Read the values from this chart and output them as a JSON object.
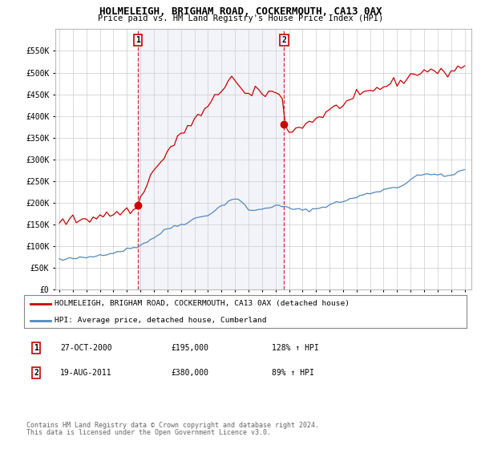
{
  "title": "HOLMELEIGH, BRIGHAM ROAD, COCKERMOUTH, CA13 0AX",
  "subtitle": "Price paid vs. HM Land Registry's House Price Index (HPI)",
  "ylim": [
    0,
    600000
  ],
  "yticks": [
    0,
    50000,
    100000,
    150000,
    200000,
    250000,
    300000,
    350000,
    400000,
    450000,
    500000,
    550000
  ],
  "ytick_labels": [
    "£0",
    "£50K",
    "£100K",
    "£150K",
    "£200K",
    "£250K",
    "£300K",
    "£350K",
    "£400K",
    "£450K",
    "£500K",
    "£550K"
  ],
  "hpi_color": "#5588bb",
  "sale_color": "#cc0000",
  "vline_color": "#cc0000",
  "shade_color": "#ddeeff",
  "background_color": "#ffffff",
  "grid_color": "#cccccc",
  "xlim_left": 1994.7,
  "xlim_right": 2025.5,
  "sale1_x": 2000.82,
  "sale1_y": 195000,
  "sale2_x": 2011.63,
  "sale2_y": 380000,
  "legend_label1": "HOLMELEIGH, BRIGHAM ROAD, COCKERMOUTH, CA13 0AX (detached house)",
  "legend_label2": "HPI: Average price, detached house, Cumberland",
  "footnote1": "Contains HM Land Registry data © Crown copyright and database right 2024.",
  "footnote2": "This data is licensed under the Open Government Licence v3.0.",
  "table_row1": [
    "1",
    "27-OCT-2000",
    "£195,000",
    "128% ↑ HPI"
  ],
  "table_row2": [
    "2",
    "19-AUG-2011",
    "£380,000",
    "89% ↑ HPI"
  ],
  "hpi_points": [
    [
      1995.0,
      70000
    ],
    [
      1995.25,
      68000
    ],
    [
      1995.5,
      69000
    ],
    [
      1995.75,
      71000
    ],
    [
      1996.0,
      72000
    ],
    [
      1996.25,
      71500
    ],
    [
      1996.5,
      72500
    ],
    [
      1996.75,
      73000
    ],
    [
      1997.0,
      74000
    ],
    [
      1997.25,
      75000
    ],
    [
      1997.5,
      76000
    ],
    [
      1997.75,
      78000
    ],
    [
      1998.0,
      80000
    ],
    [
      1998.25,
      82000
    ],
    [
      1998.5,
      83000
    ],
    [
      1998.75,
      84000
    ],
    [
      1999.0,
      85000
    ],
    [
      1999.25,
      87000
    ],
    [
      1999.5,
      89000
    ],
    [
      1999.75,
      91000
    ],
    [
      2000.0,
      93000
    ],
    [
      2000.25,
      95000
    ],
    [
      2000.5,
      97000
    ],
    [
      2000.75,
      99000
    ],
    [
      2001.0,
      103000
    ],
    [
      2001.25,
      107000
    ],
    [
      2001.5,
      111000
    ],
    [
      2001.75,
      115000
    ],
    [
      2002.0,
      120000
    ],
    [
      2002.25,
      125000
    ],
    [
      2002.5,
      130000
    ],
    [
      2002.75,
      135000
    ],
    [
      2003.0,
      140000
    ],
    [
      2003.25,
      143000
    ],
    [
      2003.5,
      146000
    ],
    [
      2003.75,
      148000
    ],
    [
      2004.0,
      150000
    ],
    [
      2004.25,
      153000
    ],
    [
      2004.5,
      156000
    ],
    [
      2004.75,
      159000
    ],
    [
      2005.0,
      163000
    ],
    [
      2005.25,
      166000
    ],
    [
      2005.5,
      168000
    ],
    [
      2005.75,
      170000
    ],
    [
      2006.0,
      173000
    ],
    [
      2006.25,
      177000
    ],
    [
      2006.5,
      182000
    ],
    [
      2006.75,
      187000
    ],
    [
      2007.0,
      193000
    ],
    [
      2007.25,
      198000
    ],
    [
      2007.5,
      203000
    ],
    [
      2007.75,
      208000
    ],
    [
      2008.0,
      210000
    ],
    [
      2008.25,
      207000
    ],
    [
      2008.5,
      200000
    ],
    [
      2008.75,
      193000
    ],
    [
      2009.0,
      185000
    ],
    [
      2009.25,
      183000
    ],
    [
      2009.5,
      182000
    ],
    [
      2009.75,
      183000
    ],
    [
      2010.0,
      186000
    ],
    [
      2010.25,
      188000
    ],
    [
      2010.5,
      190000
    ],
    [
      2010.75,
      192000
    ],
    [
      2011.0,
      193000
    ],
    [
      2011.25,
      192000
    ],
    [
      2011.5,
      191000
    ],
    [
      2011.75,
      190000
    ],
    [
      2012.0,
      188000
    ],
    [
      2012.25,
      186000
    ],
    [
      2012.5,
      185000
    ],
    [
      2012.75,
      184000
    ],
    [
      2013.0,
      183000
    ],
    [
      2013.25,
      183000
    ],
    [
      2013.5,
      184000
    ],
    [
      2013.75,
      185000
    ],
    [
      2014.0,
      186000
    ],
    [
      2014.25,
      188000
    ],
    [
      2014.5,
      190000
    ],
    [
      2014.75,
      193000
    ],
    [
      2015.0,
      196000
    ],
    [
      2015.25,
      198000
    ],
    [
      2015.5,
      200000
    ],
    [
      2015.75,
      202000
    ],
    [
      2016.0,
      204000
    ],
    [
      2016.25,
      206000
    ],
    [
      2016.5,
      208000
    ],
    [
      2016.75,
      210000
    ],
    [
      2017.0,
      213000
    ],
    [
      2017.25,
      216000
    ],
    [
      2017.5,
      218000
    ],
    [
      2017.75,
      220000
    ],
    [
      2018.0,
      222000
    ],
    [
      2018.25,
      224000
    ],
    [
      2018.5,
      226000
    ],
    [
      2018.75,
      228000
    ],
    [
      2019.0,
      230000
    ],
    [
      2019.25,
      232000
    ],
    [
      2019.5,
      234000
    ],
    [
      2019.75,
      236000
    ],
    [
      2020.0,
      237000
    ],
    [
      2020.25,
      238000
    ],
    [
      2020.5,
      242000
    ],
    [
      2020.75,
      248000
    ],
    [
      2021.0,
      254000
    ],
    [
      2021.25,
      258000
    ],
    [
      2021.5,
      261000
    ],
    [
      2021.75,
      263000
    ],
    [
      2022.0,
      265000
    ],
    [
      2022.25,
      267000
    ],
    [
      2022.5,
      268000
    ],
    [
      2022.75,
      266000
    ],
    [
      2023.0,
      264000
    ],
    [
      2023.25,
      262000
    ],
    [
      2023.5,
      261000
    ],
    [
      2023.75,
      262000
    ],
    [
      2024.0,
      264000
    ],
    [
      2024.25,
      267000
    ],
    [
      2024.5,
      270000
    ],
    [
      2024.75,
      273000
    ],
    [
      2025.0,
      275000
    ]
  ],
  "red_points": [
    [
      1995.0,
      158000
    ],
    [
      1995.25,
      156000
    ],
    [
      1995.5,
      157000
    ],
    [
      1995.75,
      160000
    ],
    [
      1996.0,
      161000
    ],
    [
      1996.25,
      159000
    ],
    [
      1996.5,
      162000
    ],
    [
      1996.75,
      163000
    ],
    [
      1997.0,
      165000
    ],
    [
      1997.25,
      163000
    ],
    [
      1997.5,
      167000
    ],
    [
      1997.75,
      168000
    ],
    [
      1998.0,
      170000
    ],
    [
      1998.25,
      172000
    ],
    [
      1998.5,
      171000
    ],
    [
      1998.75,
      173000
    ],
    [
      1999.0,
      174000
    ],
    [
      1999.25,
      176000
    ],
    [
      1999.5,
      178000
    ],
    [
      1999.75,
      180000
    ],
    [
      2000.0,
      182000
    ],
    [
      2000.25,
      183000
    ],
    [
      2000.5,
      184000
    ],
    [
      2000.75,
      186000
    ],
    [
      2001.0,
      210000
    ],
    [
      2001.25,
      230000
    ],
    [
      2001.5,
      248000
    ],
    [
      2001.75,
      262000
    ],
    [
      2002.0,
      274000
    ],
    [
      2002.25,
      283000
    ],
    [
      2002.5,
      292000
    ],
    [
      2002.75,
      305000
    ],
    [
      2003.0,
      318000
    ],
    [
      2003.25,
      328000
    ],
    [
      2003.5,
      336000
    ],
    [
      2003.75,
      345000
    ],
    [
      2004.0,
      358000
    ],
    [
      2004.25,
      367000
    ],
    [
      2004.5,
      375000
    ],
    [
      2004.75,
      382000
    ],
    [
      2005.0,
      390000
    ],
    [
      2005.25,
      398000
    ],
    [
      2005.5,
      405000
    ],
    [
      2005.75,
      412000
    ],
    [
      2006.0,
      420000
    ],
    [
      2006.25,
      430000
    ],
    [
      2006.5,
      440000
    ],
    [
      2006.75,
      450000
    ],
    [
      2007.0,
      460000
    ],
    [
      2007.25,
      470000
    ],
    [
      2007.5,
      485000
    ],
    [
      2007.75,
      492000
    ],
    [
      2008.0,
      480000
    ],
    [
      2008.25,
      470000
    ],
    [
      2008.5,
      458000
    ],
    [
      2008.75,
      452000
    ],
    [
      2009.0,
      445000
    ],
    [
      2009.25,
      448000
    ],
    [
      2009.5,
      455000
    ],
    [
      2009.75,
      458000
    ],
    [
      2010.0,
      455000
    ],
    [
      2010.25,
      450000
    ],
    [
      2010.5,
      455000
    ],
    [
      2010.75,
      458000
    ],
    [
      2011.0,
      450000
    ],
    [
      2011.25,
      448000
    ],
    [
      2011.5,
      440000
    ],
    [
      2011.75,
      380000
    ],
    [
      2012.0,
      370000
    ],
    [
      2012.25,
      365000
    ],
    [
      2012.5,
      368000
    ],
    [
      2012.75,
      373000
    ],
    [
      2013.0,
      378000
    ],
    [
      2013.25,
      382000
    ],
    [
      2013.5,
      386000
    ],
    [
      2013.75,
      390000
    ],
    [
      2014.0,
      394000
    ],
    [
      2014.25,
      398000
    ],
    [
      2014.5,
      402000
    ],
    [
      2014.75,
      408000
    ],
    [
      2015.0,
      412000
    ],
    [
      2015.25,
      416000
    ],
    [
      2015.5,
      420000
    ],
    [
      2015.75,
      424000
    ],
    [
      2016.0,
      428000
    ],
    [
      2016.25,
      432000
    ],
    [
      2016.5,
      435000
    ],
    [
      2016.75,
      438000
    ],
    [
      2017.0,
      442000
    ],
    [
      2017.25,
      446000
    ],
    [
      2017.5,
      450000
    ],
    [
      2017.75,
      453000
    ],
    [
      2018.0,
      456000
    ],
    [
      2018.25,
      459000
    ],
    [
      2018.5,
      462000
    ],
    [
      2018.75,
      465000
    ],
    [
      2019.0,
      468000
    ],
    [
      2019.25,
      471000
    ],
    [
      2019.5,
      474000
    ],
    [
      2019.75,
      477000
    ],
    [
      2020.0,
      478000
    ],
    [
      2020.25,
      479000
    ],
    [
      2020.5,
      483000
    ],
    [
      2020.75,
      488000
    ],
    [
      2021.0,
      492000
    ],
    [
      2021.25,
      496000
    ],
    [
      2021.5,
      499000
    ],
    [
      2021.75,
      501000
    ],
    [
      2022.0,
      503000
    ],
    [
      2022.25,
      505000
    ],
    [
      2022.5,
      507000
    ],
    [
      2022.75,
      504000
    ],
    [
      2023.0,
      501000
    ],
    [
      2023.25,
      499000
    ],
    [
      2023.5,
      498000
    ],
    [
      2023.75,
      500000
    ],
    [
      2024.0,
      503000
    ],
    [
      2024.25,
      507000
    ],
    [
      2024.5,
      511000
    ],
    [
      2024.75,
      514000
    ],
    [
      2025.0,
      516000
    ]
  ]
}
